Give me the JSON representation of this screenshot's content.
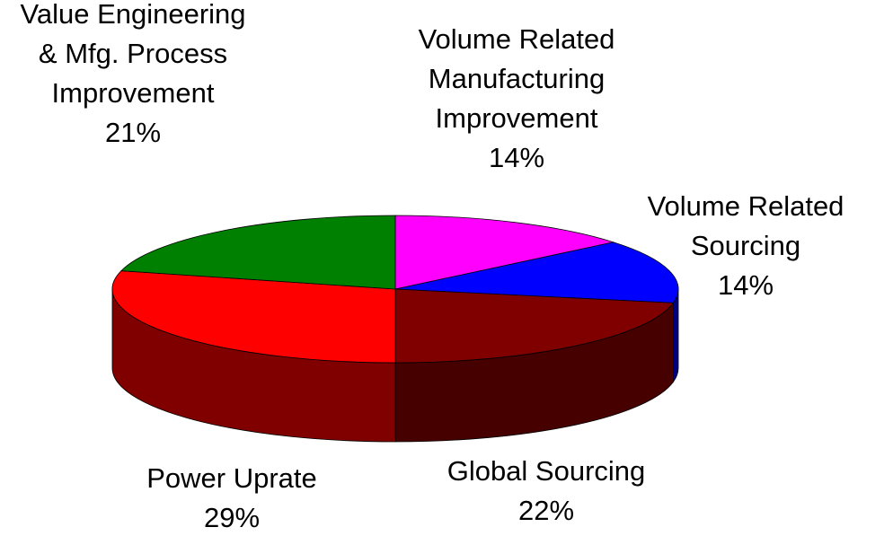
{
  "chart_data": {
    "type": "pie",
    "three_d": true,
    "categories": [
      "Volume Related Manufacturing Improvement",
      "Volume Related Sourcing",
      "Global Sourcing",
      "Power Uprate",
      "Value Engineering & Mfg. Process Improvement"
    ],
    "values": [
      14,
      14,
      22,
      29,
      21
    ],
    "value_labels": [
      "14%",
      "14%",
      "22%",
      "29%",
      "21%"
    ],
    "colors": [
      "#ff00ff",
      "#0000ff",
      "#800000",
      "#ff0000",
      "#008000"
    ],
    "start_angle": 90,
    "direction": "clockwise"
  }
}
